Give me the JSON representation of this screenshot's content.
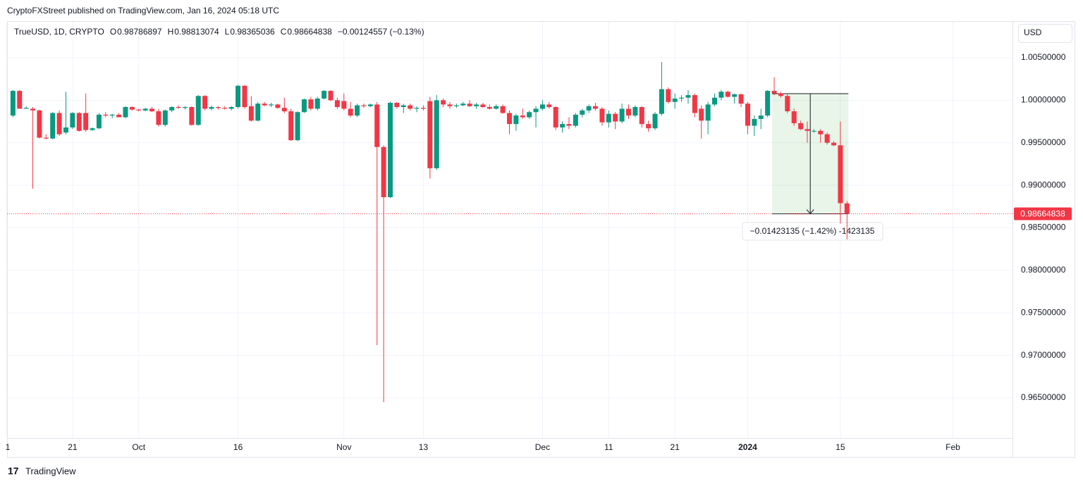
{
  "chart_data": {
    "type": "candlestick",
    "publisher": "CryptoFXStreet published on TradingView.com, Jan 16, 2024 05:18 UTC",
    "symbol": "TrueUSD, 1D, CRYPTO",
    "ohlc_labels": [
      "O",
      "H",
      "L",
      "C"
    ],
    "change": "−0.00124557 (−0.13%)",
    "currency": "USD",
    "measure_label": "−0.01423135 (−1.42%) -1423135",
    "footer": "TradingView",
    "up_color": "#089981",
    "down_color": "#f23645",
    "grid": true,
    "xlim": [
      0,
      152
    ],
    "ylim": [
      0.96028,
      1.00922
    ],
    "xticks": [
      {
        "value": 0,
        "label": "1"
      },
      {
        "value": 10,
        "label": "21"
      },
      {
        "value": 20,
        "label": "Oct"
      },
      {
        "value": 35,
        "label": "16"
      },
      {
        "value": 51,
        "label": "Nov"
      },
      {
        "value": 63,
        "label": "13"
      },
      {
        "value": 81,
        "label": "Dec"
      },
      {
        "value": 91,
        "label": "11"
      },
      {
        "value": 101,
        "label": "21"
      },
      {
        "value": 112,
        "label": "2024"
      },
      {
        "value": 126,
        "label": "15"
      },
      {
        "value": 143,
        "label": "Feb"
      }
    ],
    "yticks": [
      {
        "value": 0.965,
        "label": "0.96500000"
      },
      {
        "value": 0.97,
        "label": "0.97000000"
      },
      {
        "value": 0.975,
        "label": "0.97500000"
      },
      {
        "value": 0.98,
        "label": "0.98000000"
      },
      {
        "value": 0.985,
        "label": "0.98500000"
      },
      {
        "value": 0.99,
        "label": "0.99000000"
      },
      {
        "value": 0.995,
        "label": "0.99500000"
      },
      {
        "value": 1.0,
        "label": "1.00000000"
      },
      {
        "value": 1.005,
        "label": "1.00500000"
      }
    ],
    "x": [
      1,
      2,
      3,
      4,
      5,
      6,
      7,
      8,
      9,
      10,
      11,
      12,
      13,
      14,
      15,
      16,
      17,
      18,
      19,
      20,
      21,
      22,
      23,
      24,
      25,
      26,
      27,
      28,
      29,
      30,
      31,
      32,
      33,
      34,
      35,
      36,
      37,
      38,
      39,
      40,
      41,
      42,
      43,
      44,
      45,
      46,
      47,
      48,
      49,
      50,
      51,
      52,
      53,
      54,
      55,
      56,
      57,
      58,
      59,
      60,
      61,
      62,
      63,
      64,
      65,
      66,
      67,
      68,
      69,
      70,
      71,
      72,
      73,
      74,
      75,
      76,
      77,
      78,
      79,
      80,
      81,
      82,
      83,
      84,
      85,
      86,
      87,
      88,
      89,
      90,
      91,
      92,
      93,
      94,
      95,
      96,
      97,
      98,
      99,
      100,
      101,
      102,
      103,
      104,
      105,
      106,
      107,
      108,
      109,
      110,
      111,
      112,
      113,
      114,
      115,
      116,
      117,
      118,
      119,
      120,
      121,
      122,
      123,
      124,
      125,
      126,
      127
    ],
    "candles": [
      [
        0.9982,
        1.0012,
        0.998,
        1.0011
      ],
      [
        1.0011,
        1.0012,
        0.999,
        0.999
      ],
      [
        0.999,
        0.9993,
        0.999,
        0.9991
      ],
      [
        0.999,
        0.9992,
        0.9896,
        0.9988
      ],
      [
        0.9988,
        0.9989,
        0.9955,
        0.9956
      ],
      [
        0.9956,
        0.996,
        0.9954,
        0.9955
      ],
      [
        0.9955,
        0.9986,
        0.9954,
        0.9985
      ],
      [
        0.9985,
        0.9988,
        0.9958,
        0.996
      ],
      [
        0.9962,
        1.001,
        0.996,
        0.9968
      ],
      [
        0.9968,
        0.9986,
        0.9966,
        0.9985
      ],
      [
        0.9985,
        0.9986,
        0.9963,
        0.9964
      ],
      [
        0.9985,
        1.0008,
        0.9963,
        0.9965
      ],
      [
        0.9965,
        0.9968,
        0.9964,
        0.9967
      ],
      [
        0.9967,
        0.9985,
        0.9966,
        0.9983
      ],
      [
        0.9983,
        0.9986,
        0.998,
        0.9982
      ],
      [
        0.9982,
        0.9984,
        0.9979,
        0.9983
      ],
      [
        0.9983,
        0.9985,
        0.998,
        0.998
      ],
      [
        0.998,
        0.9993,
        0.9979,
        0.9992
      ],
      [
        0.9992,
        0.9993,
        0.9988,
        0.9989
      ],
      [
        0.9989,
        0.999,
        0.9987,
        0.9988
      ],
      [
        0.9988,
        0.9991,
        0.9987,
        0.999
      ],
      [
        0.999,
        0.9992,
        0.9986,
        0.9987
      ],
      [
        0.9987,
        0.999,
        0.9969,
        0.9971
      ],
      [
        0.9971,
        0.9989,
        0.9969,
        0.9988
      ],
      [
        0.9988,
        0.9993,
        0.9986,
        0.9992
      ],
      [
        0.9992,
        0.9994,
        0.999,
        0.9991
      ],
      [
        0.9991,
        0.9993,
        0.9989,
        0.9992
      ],
      [
        0.9992,
        0.9993,
        0.997,
        0.9971
      ],
      [
        0.9971,
        1.0006,
        0.997,
        1.0005
      ],
      [
        1.0005,
        1.0006,
        0.9988,
        0.999
      ],
      [
        0.999,
        0.9994,
        0.9988,
        0.9992
      ],
      [
        0.9992,
        0.9993,
        0.9989,
        0.9991
      ],
      [
        0.9991,
        0.9993,
        0.9989,
        0.999
      ],
      [
        0.999,
        0.9993,
        0.9988,
        0.9992
      ],
      [
        0.9992,
        1.0018,
        0.999,
        1.0017
      ],
      [
        1.0017,
        1.0018,
        0.999,
        0.9992
      ],
      [
        0.9993,
        1.0005,
        0.9975,
        0.9976
      ],
      [
        0.9976,
        0.9998,
        0.9975,
        0.9996
      ],
      [
        0.9996,
        0.9998,
        0.9993,
        0.9994
      ],
      [
        0.9994,
        0.9997,
        0.9992,
        0.9995
      ],
      [
        0.9995,
        0.9996,
        0.999,
        0.9991
      ],
      [
        0.9991,
        1.0003,
        0.9985,
        0.9987
      ],
      [
        0.9987,
        0.999,
        0.9952,
        0.9953
      ],
      [
        0.9953,
        0.9987,
        0.9952,
        0.9986
      ],
      [
        0.9986,
        1.0002,
        0.9985,
        1.0001
      ],
      [
        1.0001,
        1.0004,
        0.9988,
        0.999
      ],
      [
        0.999,
        1.0004,
        0.9988,
        1.0002
      ],
      [
        1.0002,
        1.0012,
        1.0001,
        1.0011
      ],
      [
        1.0011,
        1.0012,
        0.9999,
        1.0
      ],
      [
        1.0,
        1.0003,
        0.999,
        0.9992
      ],
      [
        0.9999,
        1.0008,
        0.9988,
        0.999
      ],
      [
        0.999,
        0.9998,
        0.998,
        0.9982
      ],
      [
        0.9982,
        0.9996,
        0.998,
        0.9994
      ],
      [
        0.9994,
        0.9996,
        0.9991,
        0.9993
      ],
      [
        0.9993,
        0.9996,
        0.9992,
        0.9995
      ],
      [
        0.9995,
        0.9998,
        0.9712,
        0.9945
      ],
      [
        0.9945,
        0.9947,
        0.9645,
        0.9886
      ],
      [
        0.9886,
        0.9998,
        0.9885,
        0.9997
      ],
      [
        0.9997,
        0.9998,
        0.999,
        0.9992
      ],
      [
        0.9992,
        0.9996,
        0.9985,
        0.9994
      ],
      [
        0.9994,
        0.9996,
        0.9988,
        0.999
      ],
      [
        0.999,
        0.9993,
        0.9986,
        0.9991
      ],
      [
        0.9991,
        0.9994,
        0.9988,
        0.999
      ],
      [
        0.9999,
        1.0004,
        0.9908,
        0.992
      ],
      [
        0.992,
        1.0006,
        0.9918,
        1.0
      ],
      [
        1.0,
        1.0002,
        0.9992,
        0.9995
      ],
      [
        0.9995,
        0.9998,
        0.999,
        0.9993
      ],
      [
        0.9993,
        0.9996,
        0.9991,
        0.9994
      ],
      [
        0.9994,
        0.9998,
        0.9993,
        0.9996
      ],
      [
        0.9996,
        1.0,
        0.9992,
        0.9993
      ],
      [
        0.9993,
        0.9997,
        0.999,
        0.9995
      ],
      [
        0.9995,
        0.9997,
        0.9991,
        0.9992
      ],
      [
        0.9992,
        0.9995,
        0.9989,
        0.999
      ],
      [
        0.999,
        0.9995,
        0.9989,
        0.9993
      ],
      [
        0.9993,
        0.9995,
        0.9984,
        0.9985
      ],
      [
        0.9985,
        0.9988,
        0.996,
        0.9972
      ],
      [
        0.9972,
        0.9984,
        0.9964,
        0.9982
      ],
      [
        0.9982,
        0.999,
        0.9978,
        0.998
      ],
      [
        0.998,
        0.9988,
        0.9978,
        0.9986
      ],
      [
        0.9986,
        0.9993,
        0.9968,
        0.999
      ],
      [
        0.999,
        1.0,
        0.9988,
        0.9995
      ],
      [
        0.9995,
        0.9998,
        0.999,
        0.9992
      ],
      [
        0.9992,
        0.9993,
        0.9965,
        0.9968
      ],
      [
        0.9968,
        0.9975,
        0.9962,
        0.9972
      ],
      [
        0.9972,
        0.998,
        0.9966,
        0.997
      ],
      [
        0.997,
        0.9985,
        0.9968,
        0.9983
      ],
      [
        0.9983,
        0.999,
        0.998,
        0.9988
      ],
      [
        0.9988,
        0.9995,
        0.9985,
        0.9993
      ],
      [
        0.9993,
        0.9997,
        0.9988,
        0.999
      ],
      [
        0.999,
        0.9992,
        0.997,
        0.9974
      ],
      [
        0.9974,
        0.9988,
        0.9968,
        0.9984
      ],
      [
        0.9984,
        0.9986,
        0.9966,
        0.9975
      ],
      [
        0.9975,
        0.9996,
        0.9973,
        0.999
      ],
      [
        0.999,
        0.9995,
        0.9978,
        0.9982
      ],
      [
        0.9982,
        0.9994,
        0.998,
        0.9992
      ],
      [
        0.9992,
        0.9993,
        0.9968,
        0.9972
      ],
      [
        0.9972,
        0.9976,
        0.9963,
        0.9967
      ],
      [
        0.9967,
        0.9986,
        0.9965,
        0.9984
      ],
      [
        0.9984,
        1.0045,
        0.9982,
        1.0013
      ],
      [
        1.0013,
        1.0015,
        0.9996,
        0.9998
      ],
      [
        0.9998,
        1.0008,
        0.999,
        1.0002
      ],
      [
        1.0002,
        1.0006,
        0.9998,
        1.0003
      ],
      [
        1.0003,
        1.0012,
        0.9996,
        1.0006
      ],
      [
        1.0006,
        1.0008,
        0.998,
        0.9985
      ],
      [
        0.999,
        0.9994,
        0.9955,
        0.9976
      ],
      [
        0.9976,
        0.9998,
        0.996,
        0.9995
      ],
      [
        0.9995,
        1.0008,
        0.9993,
        1.0003
      ],
      [
        1.0003,
        1.0012,
        1.0,
        1.001
      ],
      [
        1.001,
        1.0011,
        1.0003,
        1.0004
      ],
      [
        1.0004,
        1.0008,
        0.9996,
        1.0007
      ],
      [
        1.0007,
        1.0008,
        0.9992,
        0.9996
      ],
      [
        0.9996,
        0.9998,
        0.996,
        0.997
      ],
      [
        0.997,
        0.9982,
        0.9958,
        0.9978
      ],
      [
        0.9978,
        0.999,
        0.9966,
        0.9982
      ],
      [
        0.9982,
        1.0012,
        0.998,
        1.0011
      ],
      [
        1.0011,
        1.0027,
        1.0006,
        1.0008
      ],
      [
        1.0008,
        1.001,
        1.0003,
        1.0005
      ],
      [
        1.0005,
        1.0007,
        0.9985,
        0.9987
      ],
      [
        0.9987,
        0.999,
        0.997,
        0.9973
      ],
      [
        0.9973,
        0.9976,
        0.9965,
        0.9966
      ],
      [
        0.9966,
        0.9975,
        0.995,
        0.9964
      ],
      [
        0.9964,
        0.9966,
        0.9962,
        0.9964
      ],
      [
        0.9964,
        0.9966,
        0.995,
        0.996
      ],
      [
        0.996,
        0.9962,
        0.9948,
        0.995
      ],
      [
        0.995,
        0.9952,
        0.9946,
        0.9947
      ],
      [
        0.9947,
        0.9975,
        0.9855,
        0.9879
      ],
      [
        0.98786897,
        0.98813074,
        0.98365036,
        0.98664838
      ]
    ]
  }
}
